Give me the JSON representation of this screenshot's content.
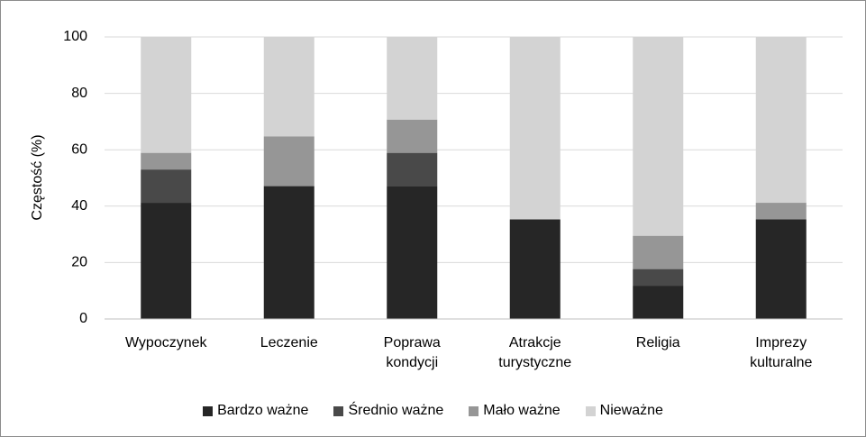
{
  "chart_data": {
    "type": "stacked_bar",
    "y_label": "Częstość (%)",
    "categories": [
      "Wypoczynek",
      "Leczenie",
      "Poprawa\nkondycji",
      "Atrakcje\nturystyczne",
      "Religia",
      "Imprezy\nkulturalne"
    ],
    "series": [
      {
        "name": "Bardzo ważne",
        "color": "#262626",
        "values": [
          41.2,
          47.1,
          47.1,
          35.3,
          11.8,
          35.3
        ]
      },
      {
        "name": "Średnio ważne",
        "color": "#494949",
        "values": [
          11.8,
          0,
          11.8,
          0,
          5.9,
          0
        ]
      },
      {
        "name": "Mało ważne",
        "color": "#969696",
        "values": [
          5.9,
          17.6,
          11.8,
          0,
          11.8,
          5.9
        ]
      },
      {
        "name": "Nieważne",
        "color": "#d3d3d3",
        "values": [
          41.1,
          35.3,
          29.3,
          64.7,
          70.5,
          58.8
        ]
      }
    ],
    "ylim": [
      0,
      100
    ],
    "yticks": [
      0,
      20,
      40,
      60,
      80,
      100
    ],
    "grid": true,
    "legend": "bottom"
  }
}
